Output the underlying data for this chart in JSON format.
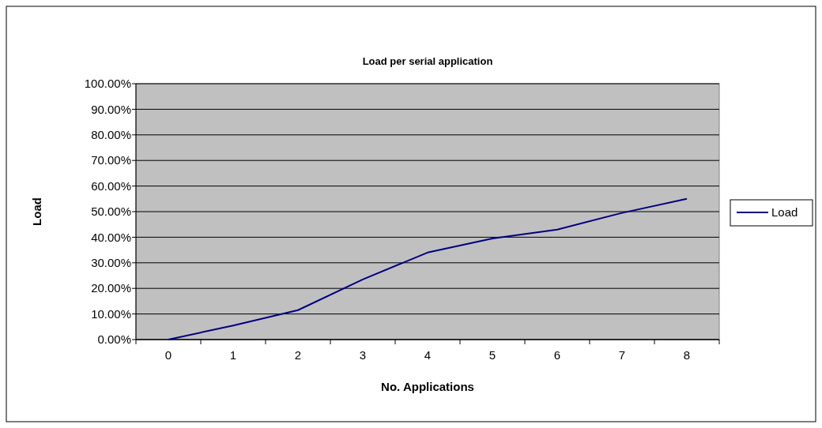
{
  "chart_data": {
    "type": "line",
    "title": "Load per serial application",
    "xlabel": "No. Applications",
    "ylabel": "Load",
    "categories": [
      "0",
      "1",
      "2",
      "3",
      "4",
      "5",
      "6",
      "7",
      "8"
    ],
    "series": [
      {
        "name": "Load",
        "color": "#000080",
        "values": [
          0,
          5.5,
          11.5,
          23.5,
          34,
          39.5,
          43,
          49.5,
          55
        ]
      }
    ],
    "ylim": [
      0,
      100
    ],
    "yticks": [
      {
        "value": 0,
        "label": "0.00%"
      },
      {
        "value": 10,
        "label": "10.00%"
      },
      {
        "value": 20,
        "label": "20.00%"
      },
      {
        "value": 30,
        "label": "30.00%"
      },
      {
        "value": 40,
        "label": "40.00%"
      },
      {
        "value": 50,
        "label": "50.00%"
      },
      {
        "value": 60,
        "label": "60.00%"
      },
      {
        "value": 70,
        "label": "70.00%"
      },
      {
        "value": 80,
        "label": "80.00%"
      },
      {
        "value": 90,
        "label": "90.00%"
      },
      {
        "value": 100,
        "label": "100.00%"
      }
    ],
    "grid": "y",
    "legend": "right",
    "marker": "none",
    "line_style": "solid"
  }
}
